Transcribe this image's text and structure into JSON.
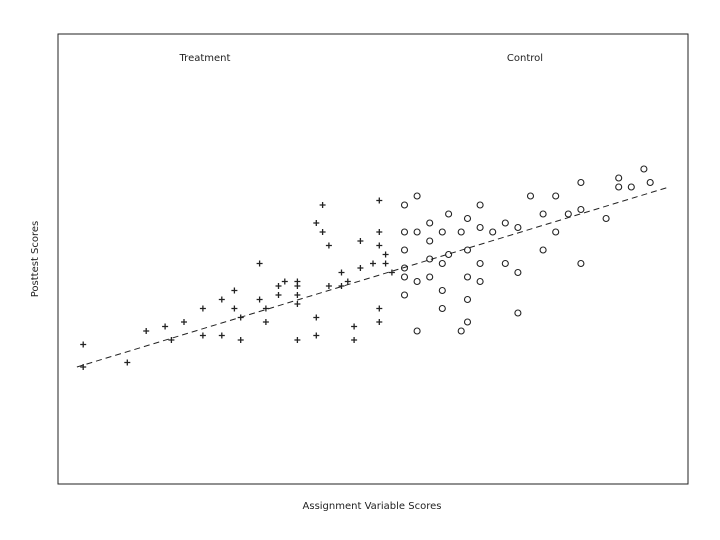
{
  "chart_data": {
    "type": "scatter",
    "title": "",
    "xlabel": "Assignment Variable Scores",
    "ylabel": "Posttest Scores",
    "xlim": [
      0,
      100
    ],
    "ylim": [
      0,
      100
    ],
    "grid": false,
    "group_labels": {
      "treatment": "Treatment",
      "control": "Control"
    },
    "trend_line": {
      "style": "dashed",
      "x": [
        3,
        97
      ],
      "y": [
        26,
        66
      ]
    },
    "series": [
      {
        "name": "Treatment",
        "marker": "plus",
        "points": [
          [
            4,
            31
          ],
          [
            4,
            26
          ],
          [
            11,
            27
          ],
          [
            14,
            34
          ],
          [
            17,
            35
          ],
          [
            18,
            32
          ],
          [
            20,
            36
          ],
          [
            23,
            39
          ],
          [
            23,
            33
          ],
          [
            26,
            41
          ],
          [
            26,
            33
          ],
          [
            28,
            39
          ],
          [
            28,
            43
          ],
          [
            29,
            37
          ],
          [
            29,
            32
          ],
          [
            32,
            49
          ],
          [
            32,
            41
          ],
          [
            33,
            39
          ],
          [
            33,
            36
          ],
          [
            35,
            44
          ],
          [
            35,
            42
          ],
          [
            36,
            45
          ],
          [
            38,
            42
          ],
          [
            38,
            44
          ],
          [
            38,
            45
          ],
          [
            38,
            40
          ],
          [
            38,
            32
          ],
          [
            41,
            58
          ],
          [
            41,
            37
          ],
          [
            41,
            33
          ],
          [
            42,
            62
          ],
          [
            42,
            56
          ],
          [
            43,
            53
          ],
          [
            43,
            44
          ],
          [
            45,
            47
          ],
          [
            45,
            44
          ],
          [
            46,
            45
          ],
          [
            47,
            35
          ],
          [
            47,
            32
          ],
          [
            48,
            54
          ],
          [
            48,
            48
          ],
          [
            50,
            49
          ],
          [
            51,
            53
          ],
          [
            51,
            56
          ],
          [
            51,
            63
          ],
          [
            51,
            39
          ],
          [
            51,
            36
          ],
          [
            52,
            49
          ],
          [
            52,
            51
          ],
          [
            53,
            47
          ]
        ]
      },
      {
        "name": "Control",
        "marker": "circle",
        "points": [
          [
            55,
            62
          ],
          [
            55,
            56
          ],
          [
            55,
            52
          ],
          [
            55,
            48
          ],
          [
            55,
            46
          ],
          [
            55,
            42
          ],
          [
            57,
            64
          ],
          [
            57,
            56
          ],
          [
            57,
            45
          ],
          [
            57,
            34
          ],
          [
            59,
            58
          ],
          [
            59,
            54
          ],
          [
            59,
            50
          ],
          [
            59,
            46
          ],
          [
            61,
            56
          ],
          [
            61,
            49
          ],
          [
            61,
            43
          ],
          [
            61,
            39
          ],
          [
            62,
            60
          ],
          [
            62,
            51
          ],
          [
            64,
            56
          ],
          [
            64,
            34
          ],
          [
            65,
            59
          ],
          [
            65,
            52
          ],
          [
            65,
            46
          ],
          [
            65,
            41
          ],
          [
            65,
            36
          ],
          [
            67,
            62
          ],
          [
            67,
            57
          ],
          [
            67,
            49
          ],
          [
            67,
            45
          ],
          [
            69,
            56
          ],
          [
            71,
            58
          ],
          [
            71,
            49
          ],
          [
            73,
            57
          ],
          [
            73,
            47
          ],
          [
            73,
            38
          ],
          [
            75,
            64
          ],
          [
            77,
            52
          ],
          [
            77,
            60
          ],
          [
            79,
            64
          ],
          [
            79,
            56
          ],
          [
            81,
            60
          ],
          [
            83,
            61
          ],
          [
            83,
            67
          ],
          [
            83,
            49
          ],
          [
            87,
            59
          ],
          [
            89,
            68
          ],
          [
            89,
            66
          ],
          [
            91,
            66
          ],
          [
            93,
            70
          ],
          [
            94,
            67
          ]
        ]
      }
    ]
  }
}
